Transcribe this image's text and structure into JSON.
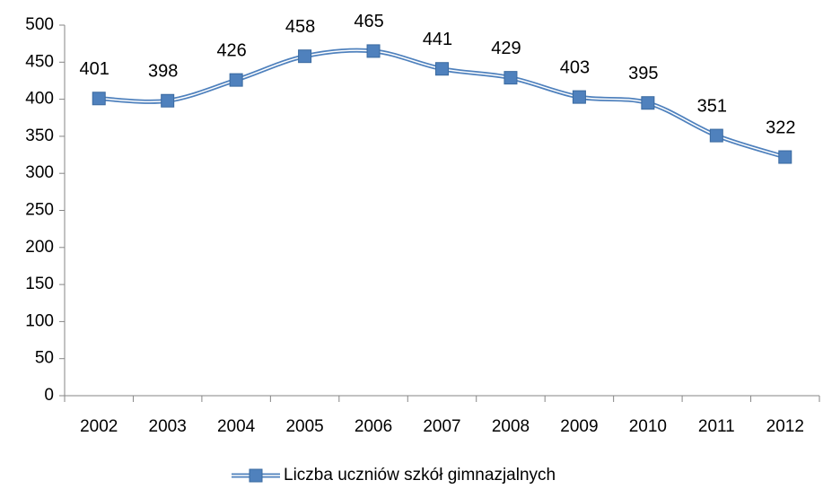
{
  "chart_data": {
    "type": "line",
    "categories": [
      "2002",
      "2003",
      "2004",
      "2005",
      "2006",
      "2007",
      "2008",
      "2009",
      "2010",
      "2011",
      "2012"
    ],
    "series": [
      {
        "name": "Liczba uczniów szkół gimnazjalnych",
        "color": "#4f81bd",
        "values": [
          401,
          398,
          426,
          458,
          465,
          441,
          429,
          403,
          395,
          351,
          322
        ]
      }
    ],
    "ylim": [
      0,
      500
    ],
    "yticks": [
      0,
      50,
      100,
      150,
      200,
      250,
      300,
      350,
      400,
      450,
      500
    ],
    "grid": false,
    "smooth": true,
    "data_labels": true,
    "legend": "bottom"
  }
}
